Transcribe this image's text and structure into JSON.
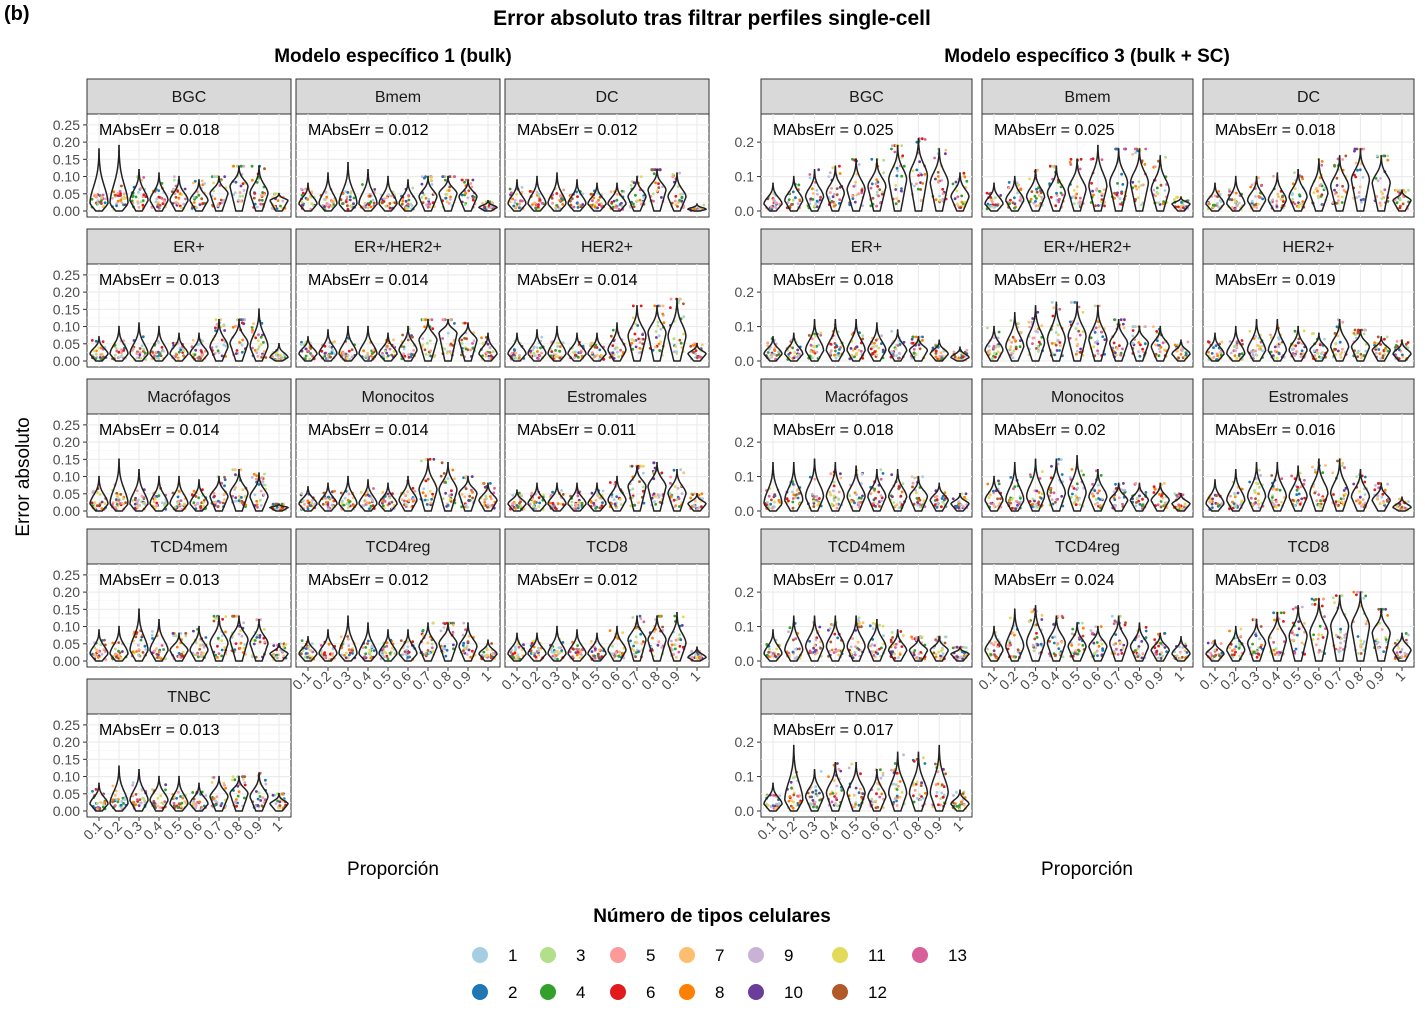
{
  "panel_label": "(b)",
  "title": "Error absoluto tras filtrar perfiles single-cell",
  "ylabel": "Error absoluto",
  "xlabel": "Proporción",
  "legend": {
    "title": "Número de tipos celulares",
    "entries": [
      {
        "label": "1",
        "color": "#A6CEE3"
      },
      {
        "label": "2",
        "color": "#1F78B4"
      },
      {
        "label": "3",
        "color": "#B2DF8A"
      },
      {
        "label": "4",
        "color": "#33A02C"
      },
      {
        "label": "5",
        "color": "#FB9A99"
      },
      {
        "label": "6",
        "color": "#E31A1C"
      },
      {
        "label": "7",
        "color": "#FDBF6F"
      },
      {
        "label": "8",
        "color": "#FF7F00"
      },
      {
        "label": "9",
        "color": "#CAB2D6"
      },
      {
        "label": "10",
        "color": "#6A3D9A"
      },
      {
        "label": "11",
        "color": "#E2DB5A"
      },
      {
        "label": "12",
        "color": "#B15928"
      },
      {
        "label": "13",
        "color": "#D95F9A"
      }
    ]
  },
  "chart_data": [
    {
      "type": "violin",
      "title": "Modelo específico 1 (bulk)",
      "x_categories": [
        "0.1",
        "0.2",
        "0.3",
        "0.4",
        "0.5",
        "0.6",
        "0.7",
        "0.8",
        "0.9",
        "1"
      ],
      "y_ticks": [
        "0.00",
        "0.05",
        "0.10",
        "0.15",
        "0.20",
        "0.25"
      ],
      "ylim": [
        0,
        0.27
      ],
      "panels": [
        {
          "name": "BGC",
          "mae_label": "MAbsErr = 0.018",
          "max": [
            0.18,
            0.19,
            0.12,
            0.11,
            0.1,
            0.09,
            0.1,
            0.13,
            0.13,
            0.05
          ],
          "median": [
            0.02,
            0.02,
            0.03,
            0.03,
            0.03,
            0.03,
            0.05,
            0.07,
            0.05,
            0.03
          ]
        },
        {
          "name": "Bmem",
          "mae_label": "MAbsErr = 0.012",
          "max": [
            0.08,
            0.11,
            0.14,
            0.12,
            0.1,
            0.09,
            0.1,
            0.1,
            0.09,
            0.03
          ],
          "median": [
            0.02,
            0.02,
            0.02,
            0.02,
            0.02,
            0.02,
            0.04,
            0.05,
            0.04,
            0.01
          ]
        },
        {
          "name": "DC",
          "mae_label": "MAbsErr = 0.012",
          "max": [
            0.09,
            0.1,
            0.11,
            0.09,
            0.08,
            0.08,
            0.1,
            0.12,
            0.11,
            0.02
          ],
          "median": [
            0.02,
            0.02,
            0.02,
            0.02,
            0.02,
            0.02,
            0.04,
            0.06,
            0.04,
            0.005
          ]
        },
        {
          "name": "ER+",
          "mae_label": "MAbsErr = 0.013",
          "max": [
            0.07,
            0.1,
            0.11,
            0.1,
            0.08,
            0.08,
            0.12,
            0.12,
            0.15,
            0.05
          ],
          "median": [
            0.02,
            0.02,
            0.02,
            0.02,
            0.02,
            0.02,
            0.04,
            0.05,
            0.04,
            0.01
          ]
        },
        {
          "name": "ER+/HER2+",
          "mae_label": "MAbsErr = 0.014",
          "max": [
            0.07,
            0.09,
            0.1,
            0.1,
            0.08,
            0.1,
            0.12,
            0.12,
            0.11,
            0.08
          ],
          "median": [
            0.02,
            0.02,
            0.02,
            0.02,
            0.02,
            0.03,
            0.06,
            0.08,
            0.06,
            0.02
          ]
        },
        {
          "name": "HER2+",
          "mae_label": "MAbsErr = 0.014",
          "max": [
            0.08,
            0.09,
            0.1,
            0.08,
            0.08,
            0.11,
            0.16,
            0.16,
            0.18,
            0.05
          ],
          "median": [
            0.02,
            0.02,
            0.02,
            0.02,
            0.02,
            0.03,
            0.07,
            0.08,
            0.07,
            0.02
          ]
        },
        {
          "name": "Macrófagos",
          "mae_label": "MAbsErr = 0.014",
          "max": [
            0.1,
            0.15,
            0.12,
            0.1,
            0.1,
            0.09,
            0.1,
            0.12,
            0.11,
            0.02
          ],
          "median": [
            0.02,
            0.02,
            0.02,
            0.02,
            0.02,
            0.02,
            0.04,
            0.05,
            0.04,
            0.01
          ]
        },
        {
          "name": "Monocitos",
          "mae_label": "MAbsErr = 0.014",
          "max": [
            0.07,
            0.08,
            0.1,
            0.09,
            0.08,
            0.1,
            0.15,
            0.14,
            0.1,
            0.08
          ],
          "median": [
            0.02,
            0.02,
            0.02,
            0.02,
            0.02,
            0.03,
            0.06,
            0.06,
            0.05,
            0.03
          ]
        },
        {
          "name": "Estromales",
          "mae_label": "MAbsErr = 0.011",
          "max": [
            0.06,
            0.08,
            0.08,
            0.08,
            0.08,
            0.1,
            0.13,
            0.14,
            0.12,
            0.05
          ],
          "median": [
            0.02,
            0.02,
            0.02,
            0.02,
            0.02,
            0.03,
            0.07,
            0.07,
            0.05,
            0.02
          ]
        },
        {
          "name": "TCD4mem",
          "mae_label": "MAbsErr = 0.013",
          "max": [
            0.09,
            0.1,
            0.15,
            0.12,
            0.08,
            0.1,
            0.13,
            0.13,
            0.12,
            0.05
          ],
          "median": [
            0.02,
            0.02,
            0.03,
            0.03,
            0.03,
            0.03,
            0.05,
            0.06,
            0.05,
            0.02
          ]
        },
        {
          "name": "TCD4reg",
          "mae_label": "MAbsErr = 0.012",
          "max": [
            0.07,
            0.09,
            0.13,
            0.11,
            0.09,
            0.09,
            0.11,
            0.11,
            0.11,
            0.06
          ],
          "median": [
            0.02,
            0.02,
            0.02,
            0.02,
            0.02,
            0.02,
            0.04,
            0.05,
            0.04,
            0.02
          ]
        },
        {
          "name": "TCD8",
          "mae_label": "MAbsErr = 0.012",
          "max": [
            0.08,
            0.08,
            0.1,
            0.09,
            0.08,
            0.1,
            0.13,
            0.13,
            0.14,
            0.04
          ],
          "median": [
            0.02,
            0.02,
            0.02,
            0.02,
            0.02,
            0.03,
            0.06,
            0.06,
            0.05,
            0.01
          ]
        },
        {
          "name": "TNBC",
          "mae_label": "MAbsErr = 0.013",
          "max": [
            0.08,
            0.13,
            0.12,
            0.1,
            0.1,
            0.08,
            0.1,
            0.1,
            0.11,
            0.05
          ],
          "median": [
            0.02,
            0.02,
            0.03,
            0.03,
            0.02,
            0.02,
            0.04,
            0.05,
            0.04,
            0.02
          ]
        }
      ]
    },
    {
      "type": "violin",
      "title": "Modelo específico 3 (bulk + SC)",
      "x_categories": [
        "0.1",
        "0.2",
        "0.3",
        "0.4",
        "0.5",
        "0.6",
        "0.7",
        "0.8",
        "0.9",
        "1"
      ],
      "y_ticks": [
        "0.0",
        "0.1",
        "0.2"
      ],
      "ylim": [
        0,
        0.27
      ],
      "panels": [
        {
          "name": "BGC",
          "mae_label": "MAbsErr = 0.025",
          "max": [
            0.08,
            0.1,
            0.12,
            0.13,
            0.15,
            0.15,
            0.19,
            0.21,
            0.18,
            0.11
          ],
          "median": [
            0.02,
            0.03,
            0.04,
            0.05,
            0.06,
            0.07,
            0.09,
            0.1,
            0.08,
            0.04
          ]
        },
        {
          "name": "Bmem",
          "mae_label": "MAbsErr = 0.025",
          "max": [
            0.08,
            0.1,
            0.12,
            0.13,
            0.15,
            0.19,
            0.18,
            0.18,
            0.16,
            0.04
          ],
          "median": [
            0.02,
            0.03,
            0.04,
            0.05,
            0.06,
            0.07,
            0.08,
            0.08,
            0.06,
            0.02
          ]
        },
        {
          "name": "DC",
          "mae_label": "MAbsErr = 0.018",
          "max": [
            0.08,
            0.1,
            0.1,
            0.11,
            0.12,
            0.15,
            0.16,
            0.18,
            0.16,
            0.06
          ],
          "median": [
            0.02,
            0.02,
            0.03,
            0.03,
            0.04,
            0.05,
            0.07,
            0.09,
            0.08,
            0.03
          ]
        },
        {
          "name": "ER+",
          "mae_label": "MAbsErr = 0.018",
          "max": [
            0.07,
            0.08,
            0.12,
            0.12,
            0.12,
            0.11,
            0.09,
            0.07,
            0.06,
            0.04
          ],
          "median": [
            0.02,
            0.02,
            0.03,
            0.03,
            0.03,
            0.03,
            0.03,
            0.03,
            0.02,
            0.01
          ]
        },
        {
          "name": "ER+/HER2+",
          "mae_label": "MAbsErr = 0.03",
          "max": [
            0.1,
            0.14,
            0.16,
            0.17,
            0.17,
            0.16,
            0.12,
            0.1,
            0.1,
            0.06
          ],
          "median": [
            0.03,
            0.04,
            0.05,
            0.06,
            0.07,
            0.06,
            0.05,
            0.05,
            0.04,
            0.02
          ]
        },
        {
          "name": "HER2+",
          "mae_label": "MAbsErr = 0.019",
          "max": [
            0.08,
            0.1,
            0.12,
            0.12,
            0.1,
            0.08,
            0.12,
            0.09,
            0.07,
            0.06
          ],
          "median": [
            0.02,
            0.02,
            0.03,
            0.03,
            0.03,
            0.03,
            0.04,
            0.04,
            0.03,
            0.02
          ]
        },
        {
          "name": "Macrófagos",
          "mae_label": "MAbsErr = 0.018",
          "max": [
            0.14,
            0.14,
            0.15,
            0.14,
            0.13,
            0.12,
            0.12,
            0.1,
            0.08,
            0.05
          ],
          "median": [
            0.02,
            0.03,
            0.04,
            0.04,
            0.04,
            0.04,
            0.04,
            0.04,
            0.03,
            0.02
          ]
        },
        {
          "name": "Monocitos",
          "mae_label": "MAbsErr = 0.02",
          "max": [
            0.1,
            0.14,
            0.15,
            0.15,
            0.16,
            0.12,
            0.08,
            0.08,
            0.08,
            0.05
          ],
          "median": [
            0.03,
            0.03,
            0.04,
            0.05,
            0.05,
            0.04,
            0.03,
            0.03,
            0.03,
            0.02
          ]
        },
        {
          "name": "Estromales",
          "mae_label": "MAbsErr = 0.016",
          "max": [
            0.09,
            0.12,
            0.14,
            0.14,
            0.13,
            0.15,
            0.15,
            0.12,
            0.08,
            0.04
          ],
          "median": [
            0.02,
            0.03,
            0.04,
            0.04,
            0.04,
            0.05,
            0.05,
            0.04,
            0.03,
            0.01
          ]
        },
        {
          "name": "TCD4mem",
          "mae_label": "MAbsErr = 0.017",
          "max": [
            0.09,
            0.13,
            0.13,
            0.13,
            0.13,
            0.12,
            0.09,
            0.07,
            0.07,
            0.04
          ],
          "median": [
            0.02,
            0.03,
            0.04,
            0.04,
            0.04,
            0.04,
            0.03,
            0.03,
            0.03,
            0.02
          ]
        },
        {
          "name": "TCD4reg",
          "mae_label": "MAbsErr = 0.024",
          "max": [
            0.1,
            0.15,
            0.16,
            0.13,
            0.11,
            0.1,
            0.13,
            0.11,
            0.08,
            0.07
          ],
          "median": [
            0.03,
            0.04,
            0.05,
            0.05,
            0.04,
            0.04,
            0.05,
            0.04,
            0.03,
            0.02
          ]
        },
        {
          "name": "TCD8",
          "mae_label": "MAbsErr = 0.03",
          "max": [
            0.06,
            0.1,
            0.12,
            0.14,
            0.16,
            0.18,
            0.19,
            0.2,
            0.15,
            0.08
          ],
          "median": [
            0.02,
            0.03,
            0.05,
            0.06,
            0.07,
            0.08,
            0.1,
            0.1,
            0.08,
            0.03
          ]
        },
        {
          "name": "TNBC",
          "mae_label": "MAbsErr = 0.017",
          "max": [
            0.08,
            0.19,
            0.12,
            0.14,
            0.14,
            0.12,
            0.17,
            0.17,
            0.19,
            0.06
          ],
          "median": [
            0.02,
            0.03,
            0.04,
            0.05,
            0.05,
            0.04,
            0.05,
            0.05,
            0.05,
            0.02
          ]
        }
      ]
    }
  ]
}
